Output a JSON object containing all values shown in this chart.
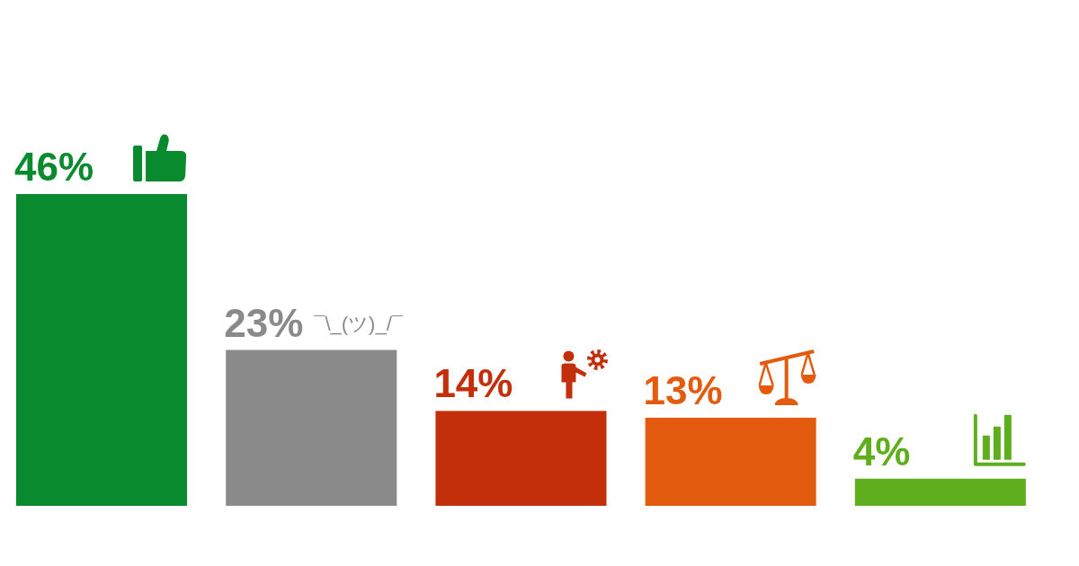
{
  "chart_data": {
    "type": "bar",
    "categories": [
      null,
      null,
      null,
      null,
      null
    ],
    "values": [
      46,
      23,
      14,
      13,
      4
    ],
    "colors": [
      "#0a8a2e",
      "#8a8a8a",
      "#c22f0a",
      "#e35b0e",
      "#5fae1e"
    ],
    "value_labels": [
      "46%",
      "23%",
      "14%",
      "13%",
      "4%"
    ],
    "annotations": [
      "¯\\_(ツ)_/¯"
    ]
  }
}
